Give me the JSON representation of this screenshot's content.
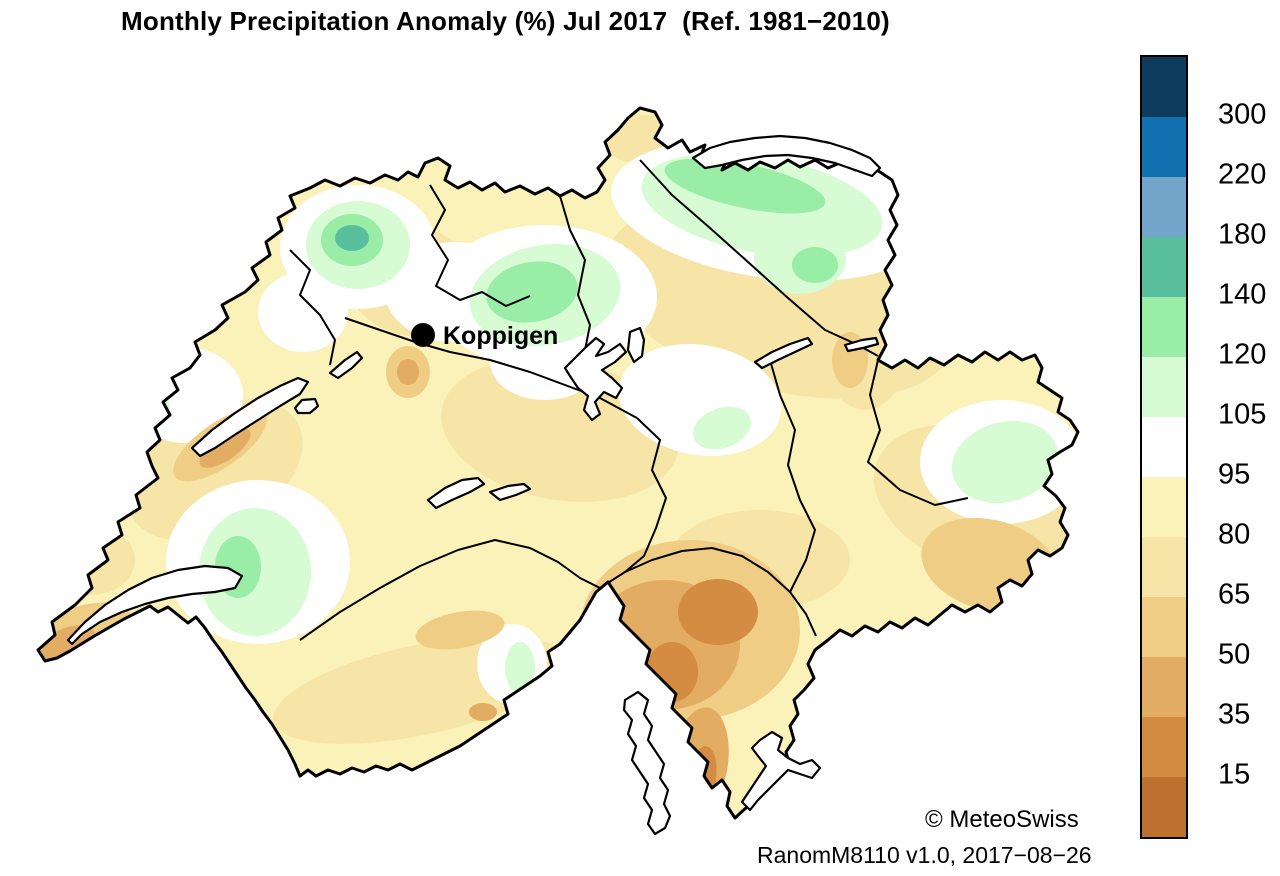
{
  "title": "Monthly Precipitation Anomaly (%) Jul 2017  (Ref. 1981−2010)",
  "map": {
    "region": "Switzerland",
    "station": {
      "name": "Koppigen",
      "marker": "filled-black-circle"
    }
  },
  "colorbar": {
    "unit": "%",
    "orientation": "vertical",
    "labels": [
      "300",
      "220",
      "180",
      "140",
      "120",
      "105",
      "95",
      "80",
      "65",
      "50",
      "35",
      "15"
    ],
    "colors_top_to_bottom": [
      "#0d3c5f",
      "#1070b0",
      "#72a5c9",
      "#58be9c",
      "#99eda7",
      "#d7fbd2",
      "#ffffff",
      "#fbf2ba",
      "#f6e5a7",
      "#efcd85",
      "#e3ac63",
      "#d48c43",
      "#bc712e"
    ],
    "value_ranges_top_to_bottom": [
      ">300",
      "220-300",
      "180-220",
      "140-180",
      "120-140",
      "105-120",
      "95-105",
      "80-95",
      "65-80",
      "50-65",
      "35-50",
      "15-35",
      "<15"
    ]
  },
  "credits": {
    "copyright": "© MeteoSwiss",
    "version": "RanomM8110 v1.0, 2017−08−26"
  }
}
